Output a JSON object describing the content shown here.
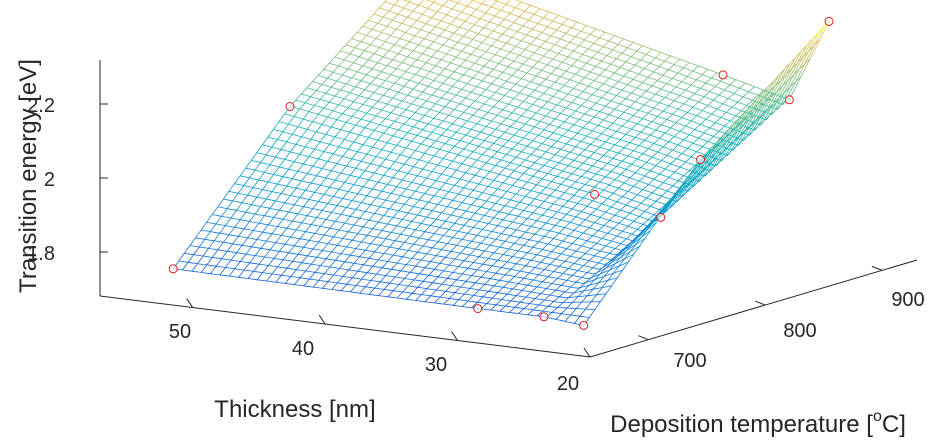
{
  "chart_data": {
    "type": "surface",
    "zlabel": "Transition energy [eV]",
    "xlabel": "Thickness [nm]",
    "ylabel_prefix": "Deposition temperature [",
    "ylabel_sup": "o",
    "ylabel_suffix": "C]",
    "x_ticks": [
      "20",
      "30",
      "40",
      "50"
    ],
    "y_ticks": [
      "700",
      "800",
      "900"
    ],
    "z_ticks": [
      "1.8",
      "2",
      "2.2"
    ],
    "xlim": [
      20,
      57
    ],
    "ylim": [
      650,
      930
    ],
    "zlim": [
      1.7,
      2.33
    ],
    "grid": false,
    "colormap": "parula",
    "mesh_color_range": [
      1.62,
      2.35
    ],
    "marker_color": "#e02020",
    "measured_points": [
      {
        "thickness": 55,
        "temperature": 690,
        "energy": 1.745
      },
      {
        "thickness": 55,
        "temperature": 790,
        "energy": 2.09
      },
      {
        "thickness": 55,
        "temperature": 900,
        "energy": 2.37
      },
      {
        "thickness": 32,
        "temperature": 690,
        "energy": 1.74
      },
      {
        "thickness": 32,
        "temperature": 790,
        "energy": 1.955
      },
      {
        "thickness": 32,
        "temperature": 900,
        "energy": 2.175
      },
      {
        "thickness": 27,
        "temperature": 690,
        "energy": 1.74
      },
      {
        "thickness": 27,
        "temperature": 790,
        "energy": 1.915
      },
      {
        "thickness": 27,
        "temperature": 900,
        "energy": 2.13
      },
      {
        "thickness": 24,
        "temperature": 690,
        "energy": 1.73
      },
      {
        "thickness": 24,
        "temperature": 790,
        "energy": 2.085
      },
      {
        "thickness": 24,
        "temperature": 900,
        "energy": 2.355
      }
    ]
  }
}
